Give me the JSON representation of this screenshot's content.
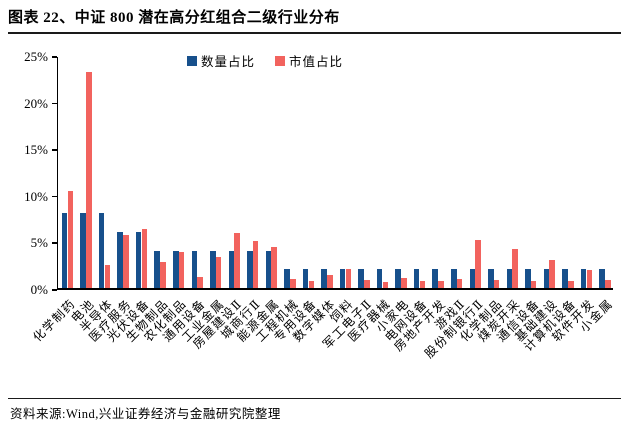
{
  "header": {
    "title": "图表 22、中证 800 潜在高分红组合二级行业分布"
  },
  "footer": {
    "source": "资料来源:Wind,兴业证券经济与金融研究院整理"
  },
  "colors": {
    "series_quantity": "#17508C",
    "series_marketcap": "#F2635E",
    "axis": "#000000",
    "rule": "#1a1a1a"
  },
  "chart_data": {
    "type": "bar",
    "title": "中证 800 潜在高分红组合二级行业分布",
    "grid": false,
    "legend_position": "top-center",
    "ylim": [
      0,
      25
    ],
    "ytick_values": [
      0,
      5,
      10,
      15,
      20,
      25
    ],
    "ytick_labels": [
      "0%",
      "5%",
      "10%",
      "15%",
      "20%",
      "25%"
    ],
    "categories": [
      "化学制药",
      "电池",
      "半导体",
      "医疗服务",
      "光伏设备",
      "生物制品",
      "农化制品",
      "通用设备",
      "工业金属",
      "房屋建设Ⅱ",
      "城商行Ⅱ",
      "能源金属",
      "工程机械",
      "专用设备",
      "数字媒体",
      "饲料",
      "军工电子Ⅱ",
      "医疗器械",
      "小家电",
      "电网设备",
      "房地产开发",
      "游戏Ⅱ",
      "股份制银行Ⅱ",
      "化学制品",
      "煤炭开采",
      "通信设备",
      "基础建设",
      "计算机设备",
      "软件开发",
      "小金属"
    ],
    "series": [
      {
        "name": "数量占比",
        "color": "#17508C",
        "values": [
          8,
          8,
          8,
          6,
          6,
          4,
          4,
          4,
          4,
          4,
          4,
          4,
          2,
          2,
          2,
          2,
          2,
          2,
          2,
          2,
          2,
          2,
          2,
          2,
          2,
          2,
          2,
          2,
          2,
          2
        ]
      },
      {
        "name": "市值占比",
        "color": "#F2635E",
        "values": [
          10.4,
          23.2,
          2.5,
          5.7,
          6.3,
          2.8,
          3.9,
          1.2,
          3.3,
          5.9,
          5.0,
          4.4,
          1.0,
          0.8,
          1.4,
          2.0,
          0.9,
          0.6,
          1.1,
          0.8,
          0.7,
          1.0,
          5.2,
          0.9,
          4.2,
          0.7,
          3.0,
          0.8,
          1.9,
          0.9
        ]
      }
    ]
  }
}
